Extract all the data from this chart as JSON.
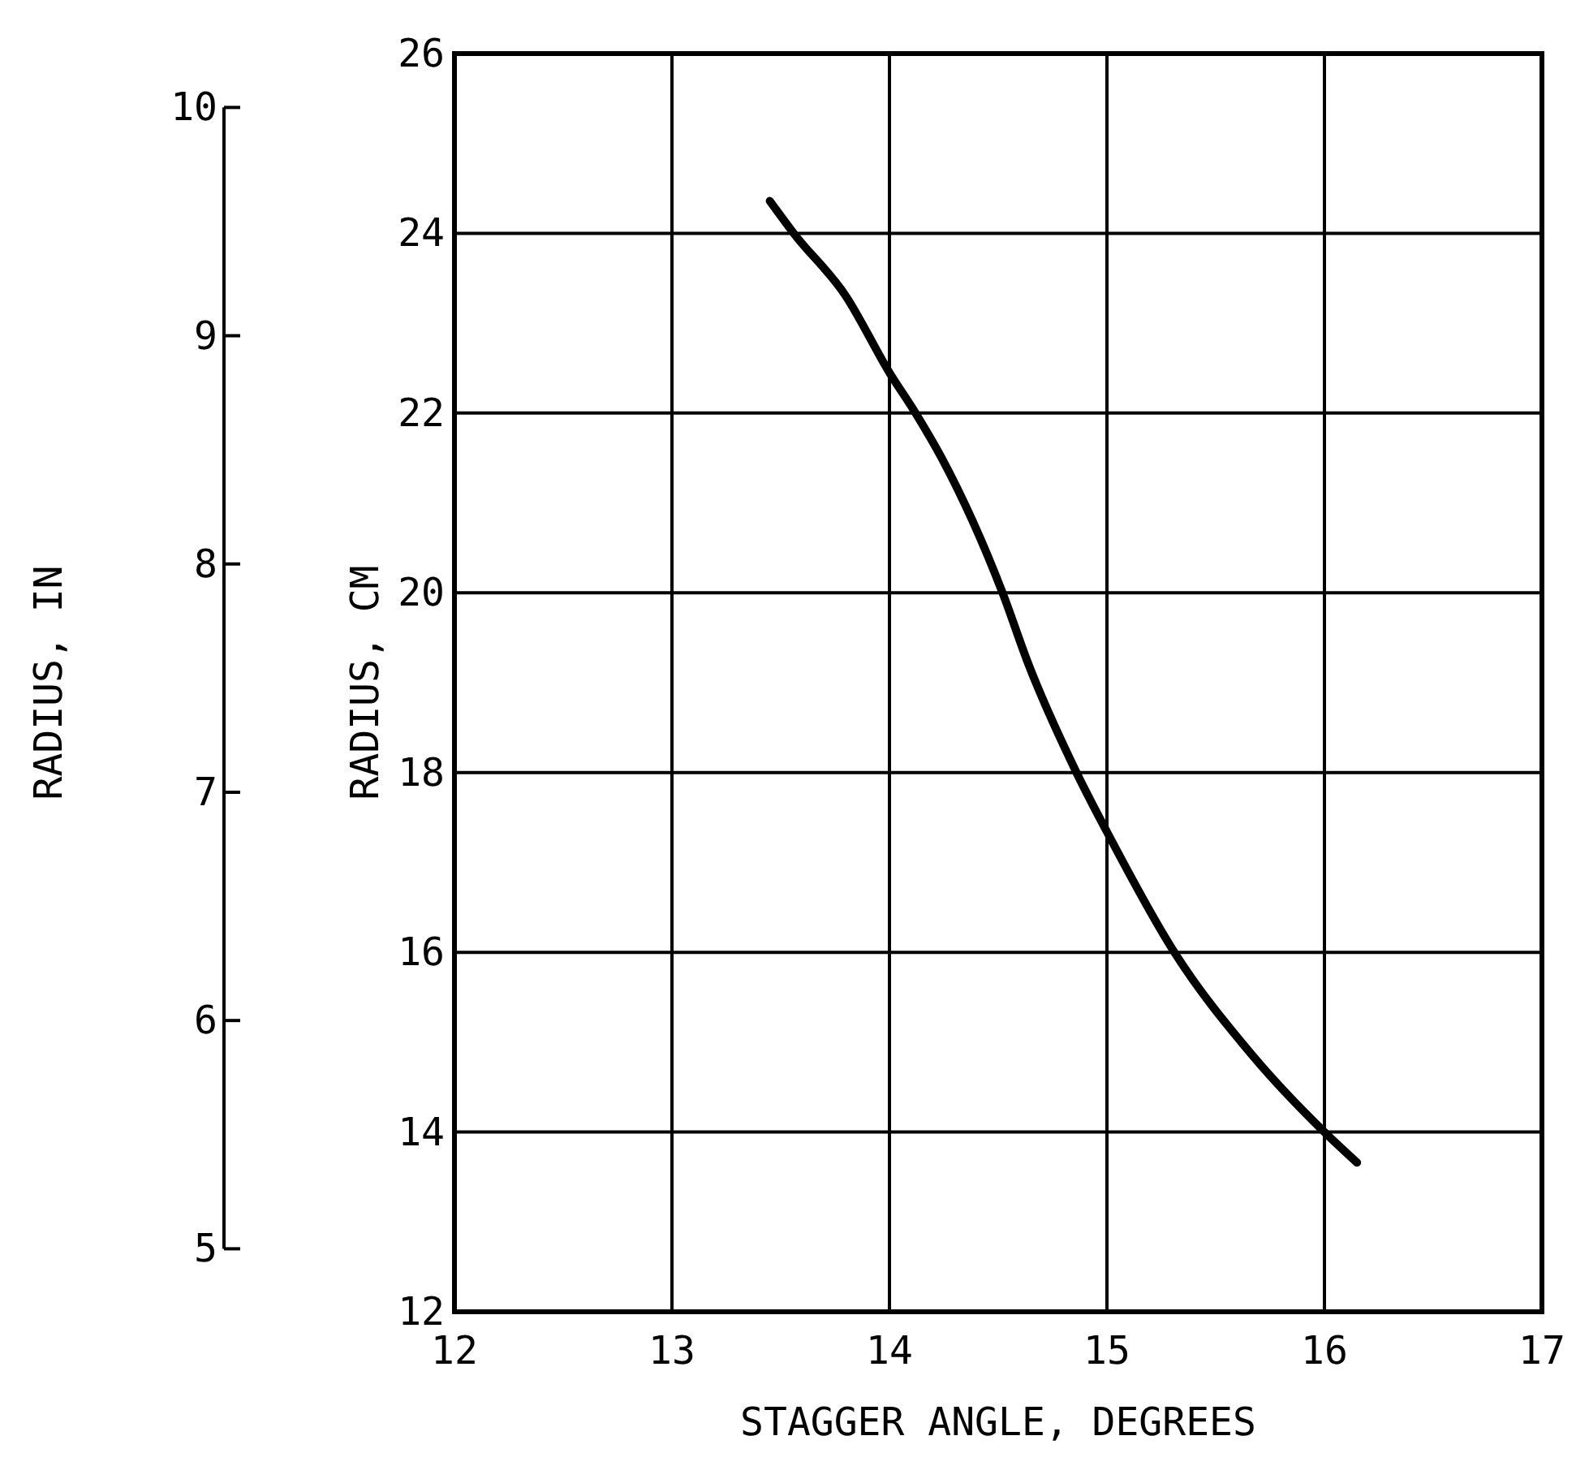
{
  "chart_data": {
    "type": "line",
    "xlabel": "STAGGER ANGLE, DEGREES",
    "ylabel": "RADIUS, CM",
    "y2label": "RADIUS, IN",
    "xlim": [
      12,
      17
    ],
    "xticks": [
      12,
      13,
      14,
      15,
      16,
      17
    ],
    "ylim": [
      12,
      26
    ],
    "yticks": [
      12,
      14,
      16,
      18,
      20,
      22,
      24,
      26
    ],
    "y2lim": [
      4.724,
      10.236
    ],
    "y2ticks": [
      5,
      6,
      7,
      8,
      9,
      10
    ],
    "grid": true,
    "marker": "none",
    "line_style": "solid",
    "series": [
      {
        "color": "#000000",
        "x": [
          13.45,
          13.56,
          13.8,
          14.0,
          14.12,
          14.24,
          14.52,
          14.64,
          14.86,
          15.0,
          15.31,
          15.67,
          16.0,
          16.15
        ],
        "values": [
          24.36,
          24.0,
          23.3,
          22.45,
          22.0,
          21.5,
          20.0,
          19.2,
          18.0,
          17.34,
          16.0,
          14.85,
          14.0,
          13.66
        ]
      }
    ]
  }
}
